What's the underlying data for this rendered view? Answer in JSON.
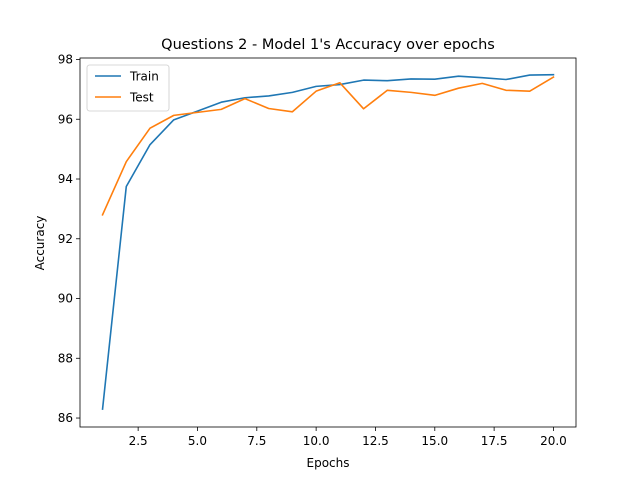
{
  "chart_data": {
    "type": "line",
    "title": "Questions 2 - Model 1's Accuracy over epochs",
    "xlabel": "Epochs",
    "ylabel": "Accuracy",
    "xlim": [
      0.05,
      20.95
    ],
    "ylim": [
      85.7,
      98.05
    ],
    "x_ticks": [
      2.5,
      5.0,
      7.5,
      10.0,
      12.5,
      15.0,
      17.5,
      20.0
    ],
    "x_tick_labels": [
      "2.5",
      "5.0",
      "7.5",
      "10.0",
      "12.5",
      "15.0",
      "17.5",
      "20.0"
    ],
    "y_ticks": [
      86,
      88,
      90,
      92,
      94,
      96,
      98
    ],
    "y_tick_labels": [
      "86",
      "88",
      "90",
      "92",
      "94",
      "96",
      "98"
    ],
    "grid": false,
    "legend_position": "upper-left",
    "x": [
      1,
      2,
      3,
      4,
      5,
      6,
      7,
      8,
      9,
      10,
      11,
      12,
      13,
      14,
      15,
      16,
      17,
      18,
      19,
      20
    ],
    "series": [
      {
        "name": "Train",
        "color": "#1f77b4",
        "values": [
          86.3,
          93.75,
          95.15,
          95.98,
          96.27,
          96.57,
          96.72,
          96.78,
          96.9,
          97.1,
          97.16,
          97.31,
          97.29,
          97.35,
          97.34,
          97.44,
          97.39,
          97.33,
          97.48,
          97.49
        ]
      },
      {
        "name": "Test",
        "color": "#ff7f0e",
        "values": [
          92.8,
          94.58,
          95.7,
          96.13,
          96.23,
          96.33,
          96.69,
          96.36,
          96.25,
          96.94,
          97.22,
          96.35,
          96.97,
          96.9,
          96.8,
          97.04,
          97.2,
          96.97,
          96.94,
          97.41
        ]
      }
    ]
  }
}
